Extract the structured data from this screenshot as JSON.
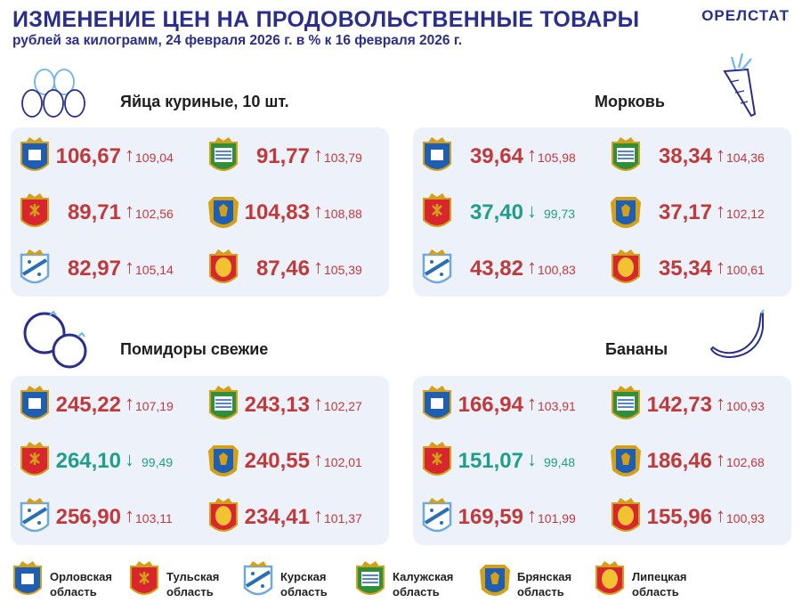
{
  "header": {
    "title": "ИЗМЕНЕНИЕ ЦЕН НА ПРОДОВОЛЬСТВЕННЫЕ ТОВАРЫ",
    "subtitle": "рублей за килограмм, 24 февраля 2026 г. в % к 16 февраля 2026 г.",
    "brand": "ОРЕЛСТАТ"
  },
  "colors": {
    "title": "#2a2e8c",
    "up": "#c0393b",
    "down": "#1f9e89",
    "panel": "#ecf1fa"
  },
  "regions": [
    "Орловская область",
    "Тульская область",
    "Курская область",
    "Калужская область",
    "Брянская область",
    "Липецкая область"
  ],
  "sections": {
    "eggs": {
      "title": "Яйца куриные, 10 шт.",
      "icon": "eggs-icon",
      "rows": [
        [
          {
            "region": "orel",
            "price": "106,67",
            "dir": "up",
            "pct": "109,04"
          },
          {
            "region": "kaluga",
            "price": "91,77",
            "dir": "up",
            "pct": "103,79"
          }
        ],
        [
          {
            "region": "tula",
            "price": "89,71",
            "dir": "up",
            "pct": "102,56"
          },
          {
            "region": "bryansk",
            "price": "104,83",
            "dir": "up",
            "pct": "108,88"
          }
        ],
        [
          {
            "region": "kursk",
            "price": "82,97",
            "dir": "up",
            "pct": "105,14"
          },
          {
            "region": "lipetsk",
            "price": "87,46",
            "dir": "up",
            "pct": "105,39"
          }
        ]
      ]
    },
    "carrot": {
      "title": "Морковь",
      "icon": "carrot-icon",
      "rows": [
        [
          {
            "region": "orel",
            "price": "39,64",
            "dir": "up",
            "pct": "105,98"
          },
          {
            "region": "kaluga",
            "price": "38,34",
            "dir": "up",
            "pct": "104,36"
          }
        ],
        [
          {
            "region": "tula",
            "price": "37,40",
            "dir": "down",
            "pct": "99,73"
          },
          {
            "region": "bryansk",
            "price": "37,17",
            "dir": "up",
            "pct": "102,12"
          }
        ],
        [
          {
            "region": "kursk",
            "price": "43,82",
            "dir": "up",
            "pct": "100,83"
          },
          {
            "region": "lipetsk",
            "price": "35,34",
            "dir": "up",
            "pct": "100,61"
          }
        ]
      ]
    },
    "tomatoes": {
      "title": "Помидоры свежие",
      "icon": "tomatoes-icon",
      "rows": [
        [
          {
            "region": "orel",
            "price": "245,22",
            "dir": "up",
            "pct": "107,19"
          },
          {
            "region": "kaluga",
            "price": "243,13",
            "dir": "up",
            "pct": "102,27"
          }
        ],
        [
          {
            "region": "tula",
            "price": "264,10",
            "dir": "down",
            "pct": "99,49"
          },
          {
            "region": "bryansk",
            "price": "240,55",
            "dir": "up",
            "pct": "102,01"
          }
        ],
        [
          {
            "region": "kursk",
            "price": "256,90",
            "dir": "up",
            "pct": "103,11"
          },
          {
            "region": "lipetsk",
            "price": "234,41",
            "dir": "up",
            "pct": "101,37"
          }
        ]
      ]
    },
    "bananas": {
      "title": "Бананы",
      "icon": "banana-icon",
      "rows": [
        [
          {
            "region": "orel",
            "price": "166,94",
            "dir": "up",
            "pct": "103,91"
          },
          {
            "region": "kaluga",
            "price": "142,73",
            "dir": "up",
            "pct": "100,93"
          }
        ],
        [
          {
            "region": "tula",
            "price": "151,07",
            "dir": "down",
            "pct": "99,48"
          },
          {
            "region": "bryansk",
            "price": "186,46",
            "dir": "up",
            "pct": "102,68"
          }
        ],
        [
          {
            "region": "kursk",
            "price": "169,59",
            "dir": "up",
            "pct": "101,99"
          },
          {
            "region": "lipetsk",
            "price": "155,96",
            "dir": "up",
            "pct": "100,93"
          }
        ]
      ]
    }
  },
  "legend": [
    {
      "region": "orel",
      "line1": "Орловская",
      "line2": "область"
    },
    {
      "region": "tula",
      "line1": "Тульская",
      "line2": "область"
    },
    {
      "region": "kursk",
      "line1": "Курская",
      "line2": "область"
    },
    {
      "region": "kaluga",
      "line1": "Калужская",
      "line2": "область"
    },
    {
      "region": "bryansk",
      "line1": "Брянская",
      "line2": "область"
    },
    {
      "region": "lipetsk",
      "line1": "Липецкая",
      "line2": "область"
    }
  ],
  "arrows": {
    "up": "↑",
    "down": "↓"
  }
}
